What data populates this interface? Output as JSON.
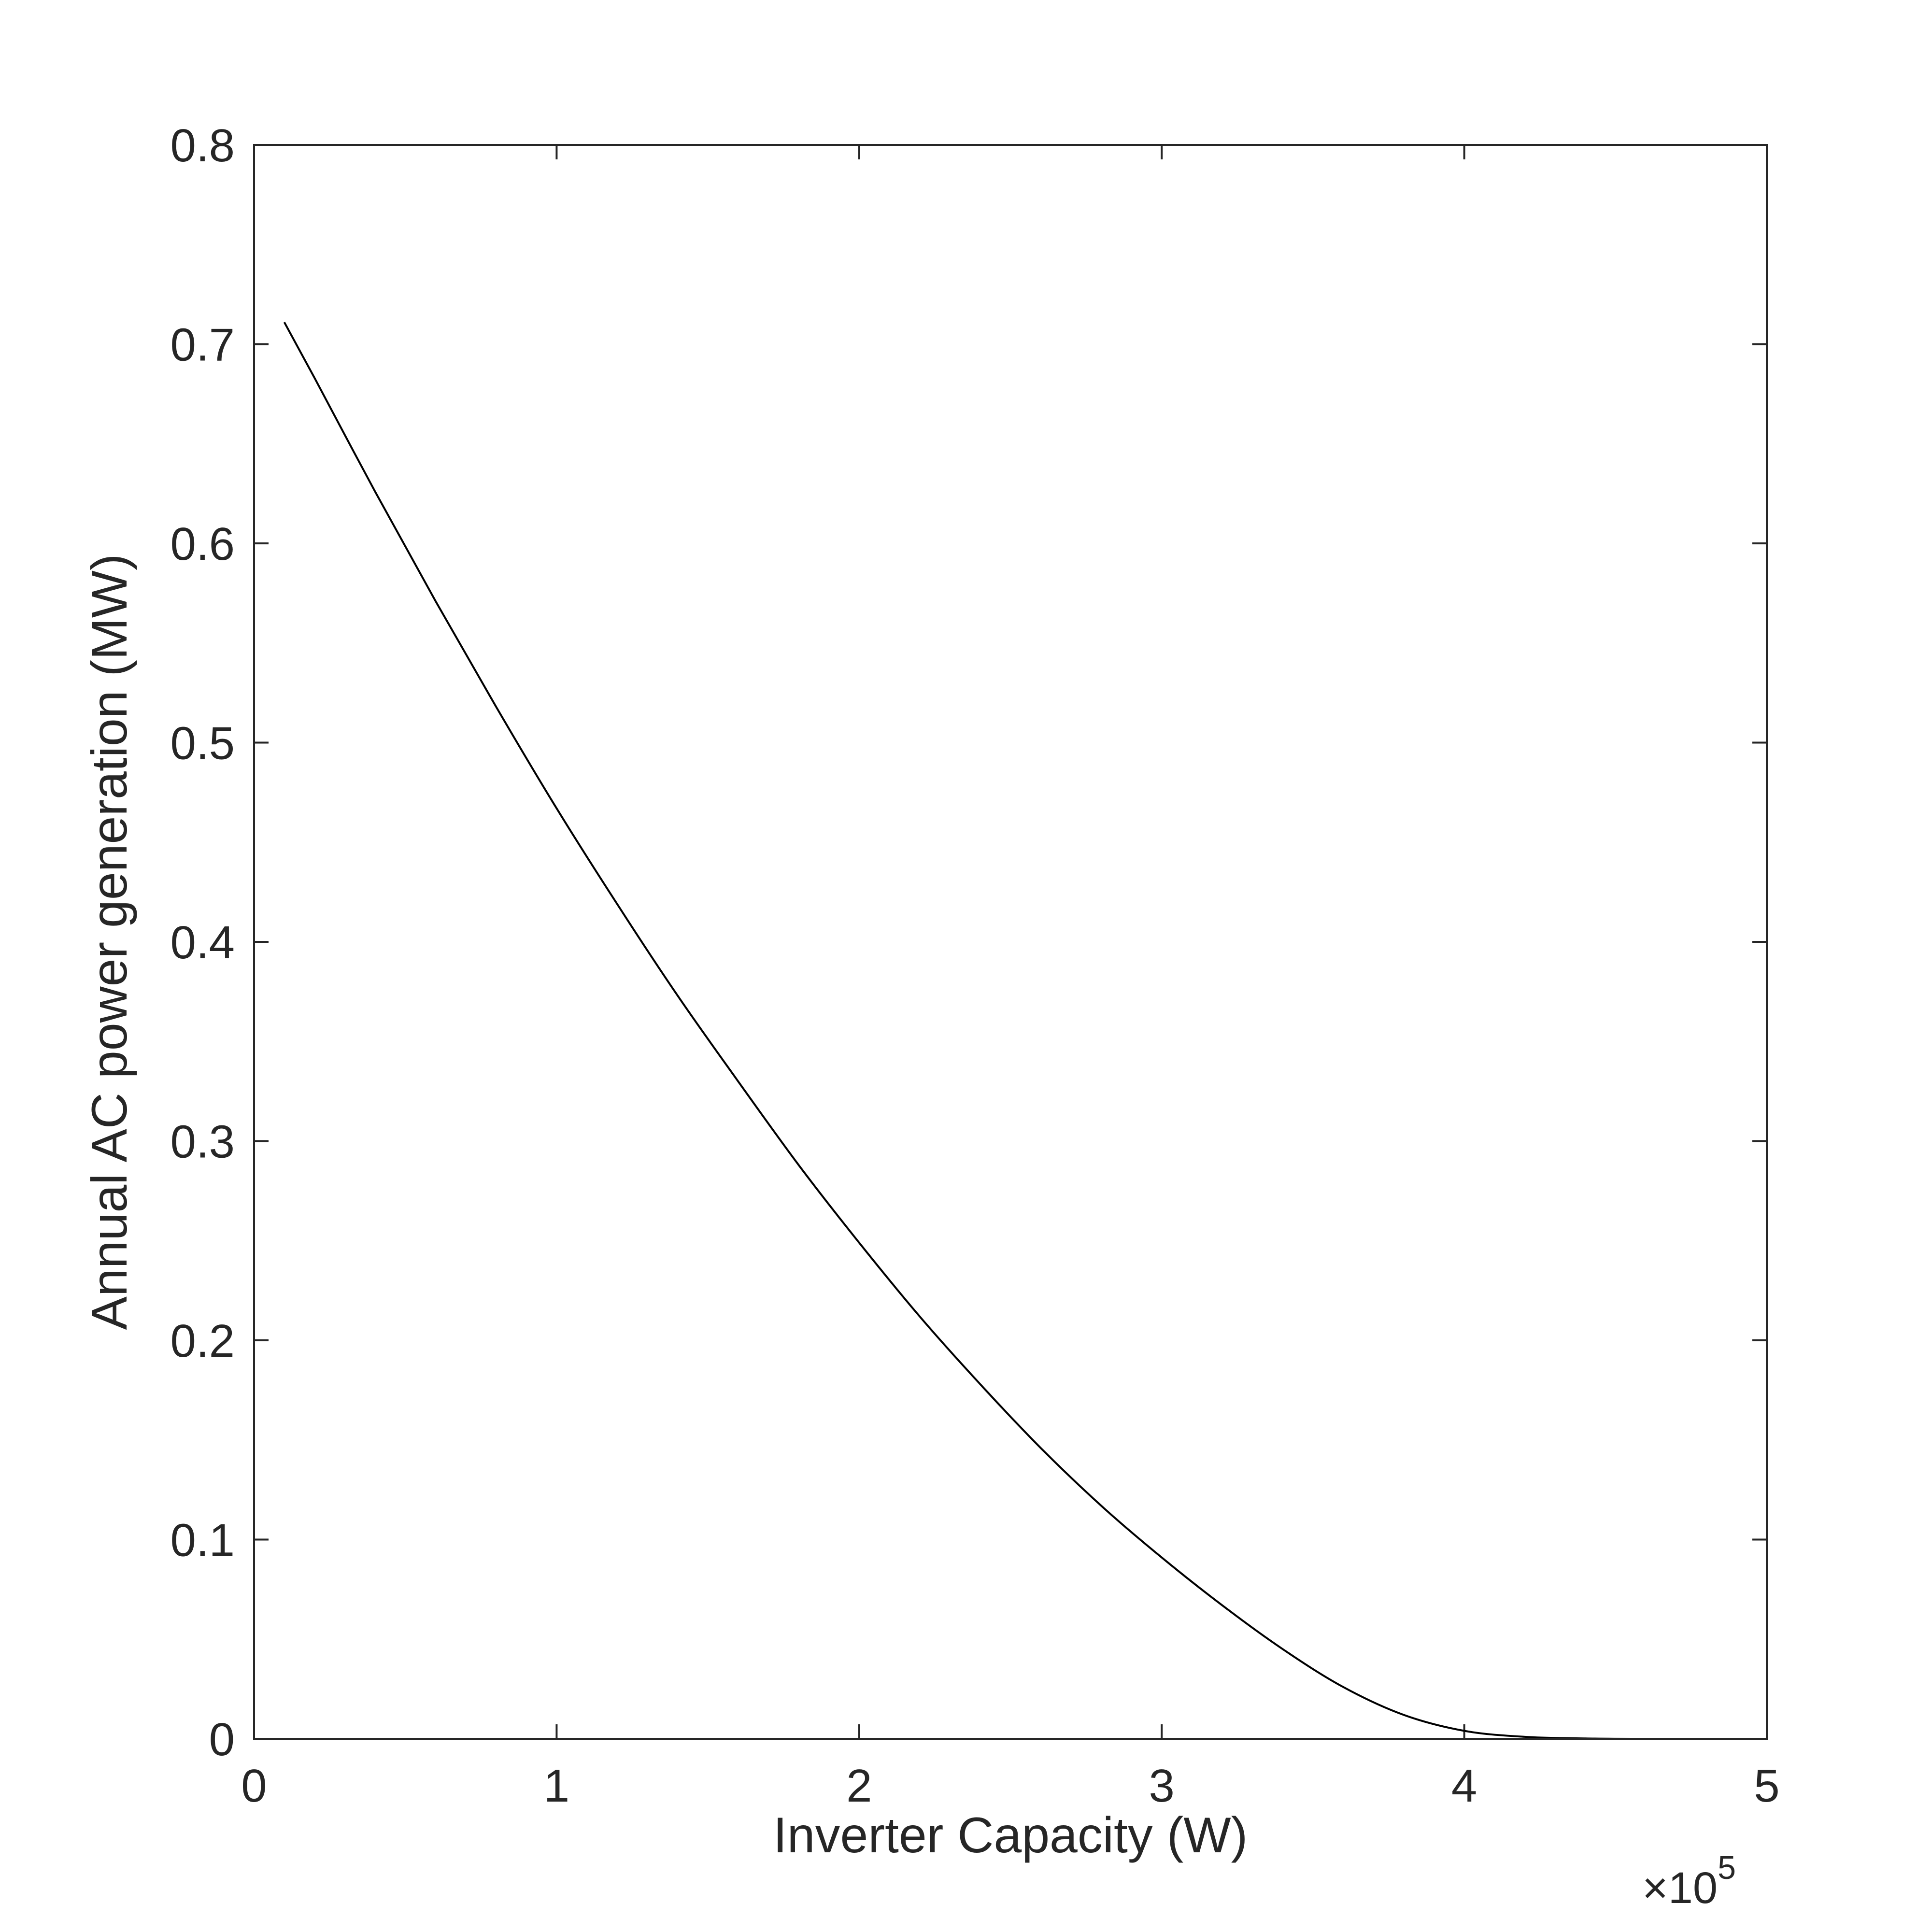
{
  "chart_data": {
    "type": "line",
    "title": "",
    "xlabel": "Inverter Capacity (W)",
    "ylabel": "Annual AC power generation (MW)",
    "x_exponent_label": {
      "times": "×",
      "base": "10",
      "exponent": "5"
    },
    "xlim": [
      0,
      500000
    ],
    "ylim": [
      0,
      0.8
    ],
    "xticks": [
      0,
      100000,
      200000,
      300000,
      400000,
      500000
    ],
    "xtick_labels": [
      "0",
      "1",
      "2",
      "3",
      "4",
      "5"
    ],
    "yticks": [
      0,
      0.1,
      0.2,
      0.3,
      0.4,
      0.5,
      0.6,
      0.7,
      0.8
    ],
    "ytick_labels": [
      "0",
      "0.1",
      "0.2",
      "0.3",
      "0.4",
      "0.5",
      "0.6",
      "0.7",
      "0.8"
    ],
    "grid": false,
    "legend": "none",
    "series": [
      {
        "color": "#000000",
        "x": [
          10000,
          20000,
          40000,
          60000,
          80000,
          100000,
          120000,
          140000,
          160000,
          180000,
          200000,
          220000,
          240000,
          260000,
          280000,
          300000,
          320000,
          340000,
          360000,
          380000,
          400000,
          420000,
          440000,
          460000,
          480000,
          500000
        ],
        "y": [
          0.711,
          0.683,
          0.626,
          0.571,
          0.518,
          0.467,
          0.419,
          0.373,
          0.33,
          0.288,
          0.249,
          0.212,
          0.178,
          0.146,
          0.117,
          0.091,
          0.067,
          0.045,
          0.026,
          0.012,
          0.004,
          0.001,
          0.0002,
          0.0,
          0.0,
          0.0
        ]
      }
    ]
  }
}
